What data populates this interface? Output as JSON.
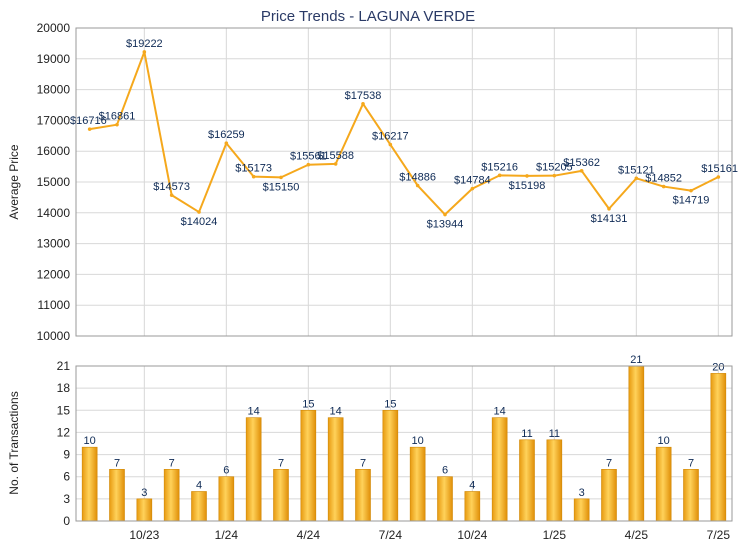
{
  "chart_data": [
    {
      "type": "line",
      "title": "Price Trends - LAGUNA VERDE",
      "ylabel": "Average Price",
      "ylim": [
        10000,
        20000
      ],
      "yticks": [
        10000,
        11000,
        12000,
        13000,
        14000,
        15000,
        16000,
        17000,
        18000,
        19000,
        20000
      ],
      "grid": true,
      "series": [
        {
          "color": "#f5a81c",
          "values": [
            16716,
            16861,
            19222,
            14573,
            14024,
            16259,
            15173,
            15150,
            15561,
            15588,
            17538,
            16217,
            14886,
            13944,
            14784,
            15216,
            15198,
            15205,
            15362,
            14131,
            15121,
            14852,
            14719,
            15161
          ],
          "labels": [
            "$16716",
            "$16861",
            "$19222",
            "$14573",
            "$14024",
            "$16259",
            "$15173",
            "$15150",
            "$15561",
            "$15588",
            "$17538",
            "$16217",
            "$14886",
            "$13944",
            "$14784",
            "$15216",
            "$15198",
            "$15205",
            "$15362",
            "$14131",
            "$15121",
            "$14852",
            "$14719",
            "$15161"
          ]
        }
      ]
    },
    {
      "type": "bar",
      "ylabel": "No. of Transactions",
      "ylim": [
        0,
        21
      ],
      "yticks": [
        0,
        3,
        6,
        9,
        12,
        15,
        18,
        21
      ],
      "grid": true,
      "xticks": [
        "10/23",
        "1/24",
        "4/24",
        "7/24",
        "10/24",
        "1/25",
        "4/25",
        "7/25"
      ],
      "series": [
        {
          "color": "#f5a81c",
          "values": [
            10,
            7,
            3,
            7,
            4,
            6,
            14,
            7,
            15,
            14,
            7,
            15,
            10,
            6,
            4,
            14,
            11,
            11,
            3,
            7,
            21,
            10,
            7,
            20
          ]
        }
      ]
    }
  ]
}
